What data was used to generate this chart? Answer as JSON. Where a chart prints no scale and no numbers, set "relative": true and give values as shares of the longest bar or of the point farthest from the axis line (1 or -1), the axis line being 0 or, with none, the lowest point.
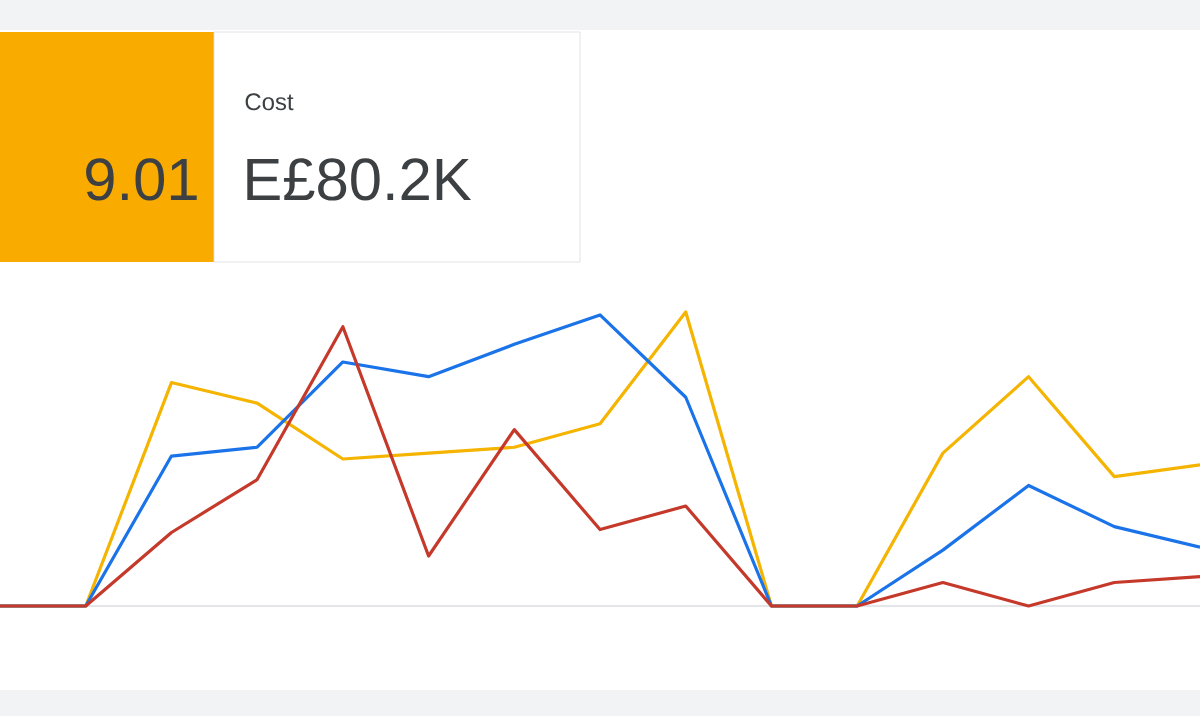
{
  "chart_data": {
    "type": "line",
    "relative": true,
    "categories": [
      null,
      null,
      null,
      null,
      null,
      null,
      null,
      null,
      null,
      null,
      null,
      null,
      null,
      null,
      null
    ],
    "series": [
      {
        "color": "#f4b400",
        "values": [
          0,
          0,
          0.76,
          0.69,
          0.5,
          0.52,
          0.54,
          0.62,
          1.0,
          0,
          0,
          0.52,
          0.78,
          0.44,
          0.48
        ]
      },
      {
        "color": "#1a73e8",
        "values": [
          0,
          0,
          0.51,
          0.54,
          0.83,
          0.78,
          0.89,
          0.99,
          0.71,
          0,
          0,
          0.19,
          0.41,
          0.27,
          0.2
        ]
      },
      {
        "color": "#c5392a",
        "values": [
          0,
          0,
          0.25,
          0.43,
          0.95,
          0.17,
          0.6,
          0.26,
          0.34,
          0,
          0,
          0.08,
          0,
          0.08,
          0.1
        ]
      }
    ],
    "annotations": [
      "9.01",
      "Cost",
      "E£80.2K"
    ]
  }
}
